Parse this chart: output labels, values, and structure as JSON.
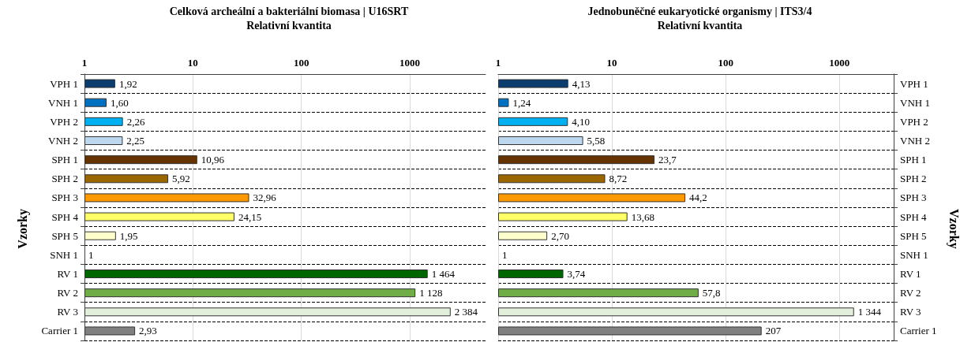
{
  "chart_data": [
    {
      "type": "bar",
      "orientation": "horizontal",
      "title": "Celková archeální a bakteriální biomasa | U16SRT",
      "xlabel": "Relativní kvantita",
      "ylabel": "Vzorky",
      "log": "x",
      "grid": true,
      "categories": [
        "VPH 1",
        "VNH 1",
        "VPH 2",
        "VNH 2",
        "SPH 1",
        "SPH 2",
        "SPH 3",
        "SPH 4",
        "SPH 5",
        "SNH 1",
        "RV 1",
        "RV 2",
        "RV 3",
        "Carrier 1"
      ],
      "values": [
        1.92,
        1.6,
        2.26,
        2.25,
        10.96,
        5.92,
        32.96,
        24.15,
        1.95,
        1,
        1464,
        1128,
        2384,
        2.93
      ],
      "value_labels": [
        "1,92",
        "1,60",
        "2,26",
        "2,25",
        "10,96",
        "5,92",
        "32,96",
        "24,15",
        "1,95",
        "1",
        "1 464",
        "1 128",
        "2 384",
        "2,93"
      ],
      "colors": [
        "#0b3d6e",
        "#0070c0",
        "#00b0f0",
        "#bdd7ee",
        "#663300",
        "#996600",
        "#ff9900",
        "#ffff66",
        "#ffffcc",
        "#ffffff",
        "#006600",
        "#70ad47",
        "#e2efda",
        "#808080"
      ],
      "xlim": [
        1,
        5000
      ],
      "xticks": [
        1,
        10,
        100,
        1000
      ]
    },
    {
      "type": "bar",
      "orientation": "horizontal",
      "title": "Jednobuněčné eukaryotické organismy | ITS3/4",
      "xlabel": "Relativní kvantita",
      "ylabel": "Vzorky",
      "log": "x",
      "grid": true,
      "categories": [
        "VPH 1",
        "VNH 1",
        "VPH 2",
        "VNH 2",
        "SPH 1",
        "SPH 2",
        "SPH 3",
        "SPH 4",
        "SPH 5",
        "SNH 1",
        "RV 1",
        "RV 2",
        "RV 3",
        "Carrier 1"
      ],
      "values": [
        4.13,
        1.24,
        4.1,
        5.58,
        23.7,
        8.72,
        44.2,
        13.68,
        2.7,
        1,
        3.74,
        57.8,
        1344,
        207
      ],
      "value_labels": [
        "4,13",
        "1,24",
        "4,10",
        "5,58",
        "23,7",
        "8,72",
        "44,2",
        "13,68",
        "2,70",
        "1",
        "3,74",
        "57,8",
        "1 344",
        "207"
      ],
      "colors": [
        "#0b3d6e",
        "#0070c0",
        "#00b0f0",
        "#bdd7ee",
        "#663300",
        "#996600",
        "#ff9900",
        "#ffff66",
        "#ffffcc",
        "#ffffff",
        "#006600",
        "#70ad47",
        "#e2efda",
        "#808080"
      ],
      "xlim": [
        1,
        3000
      ],
      "xticks": [
        1,
        10,
        100,
        1000
      ]
    }
  ]
}
